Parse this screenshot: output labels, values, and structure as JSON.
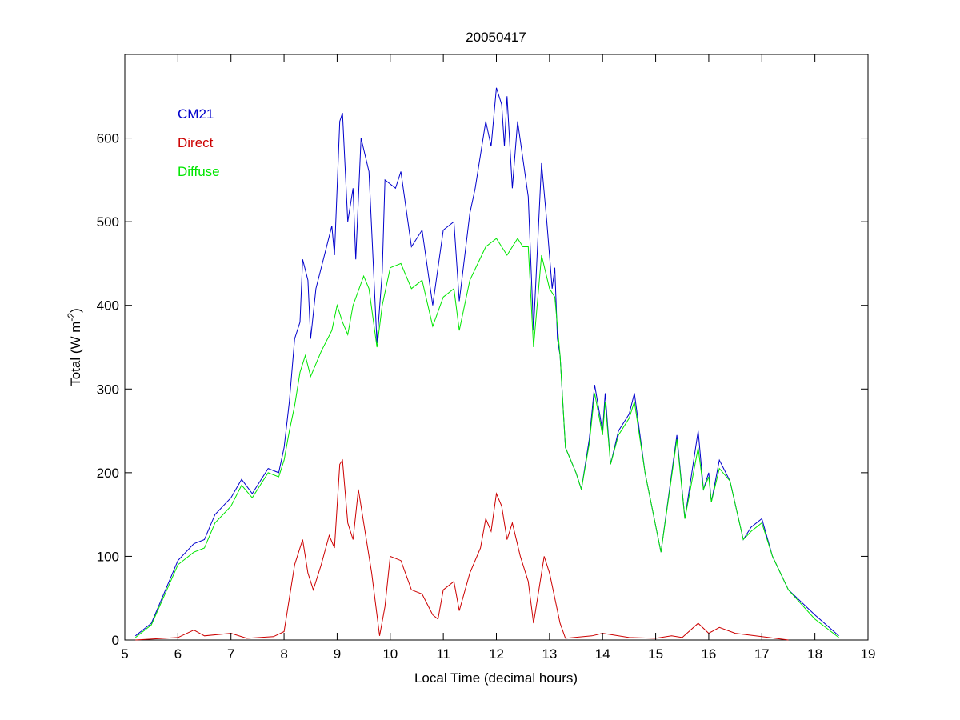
{
  "chart_data": {
    "type": "line",
    "title": "20050417",
    "xlabel": "Local Time (decimal hours)",
    "ylabel": {
      "prefix": "Total (W m",
      "sup": "-2",
      "suffix": ")"
    },
    "xlim": [
      5,
      19
    ],
    "ylim": [
      0,
      700
    ],
    "xticks": [
      5,
      6,
      7,
      8,
      9,
      10,
      11,
      12,
      13,
      14,
      15,
      16,
      17,
      18,
      19
    ],
    "yticks": [
      0,
      100,
      200,
      300,
      400,
      500,
      600
    ],
    "grid": false,
    "legend_placement": "top-left",
    "series": [
      {
        "name": "CM21",
        "color": "#0000cc",
        "x": [
          5.2,
          5.5,
          6.0,
          6.3,
          6.5,
          6.7,
          7.0,
          7.2,
          7.4,
          7.7,
          7.9,
          8.0,
          8.1,
          8.2,
          8.3,
          8.35,
          8.45,
          8.5,
          8.6,
          8.8,
          8.9,
          8.95,
          9.05,
          9.1,
          9.2,
          9.3,
          9.35,
          9.45,
          9.6,
          9.75,
          9.85,
          9.9,
          10.1,
          10.2,
          10.4,
          10.6,
          10.8,
          11.0,
          11.2,
          11.3,
          11.5,
          11.6,
          11.8,
          11.9,
          12.0,
          12.1,
          12.15,
          12.2,
          12.3,
          12.4,
          12.6,
          12.7,
          12.85,
          12.95,
          13.05,
          13.1,
          13.15,
          13.2,
          13.3,
          13.5,
          13.6,
          13.75,
          13.85,
          14.0,
          14.05,
          14.15,
          14.3,
          14.5,
          14.6,
          14.8,
          15.1,
          15.4,
          15.55,
          15.8,
          15.9,
          16.0,
          16.05,
          16.2,
          16.4,
          16.65,
          16.8,
          17.0,
          17.2,
          17.5,
          18.0,
          18.45
        ],
        "y": [
          5,
          20,
          95,
          115,
          120,
          150,
          170,
          192,
          175,
          205,
          200,
          230,
          285,
          360,
          380,
          455,
          430,
          360,
          420,
          470,
          495,
          460,
          620,
          630,
          500,
          540,
          455,
          600,
          560,
          355,
          440,
          550,
          540,
          560,
          470,
          490,
          400,
          490,
          500,
          405,
          510,
          540,
          620,
          590,
          660,
          640,
          590,
          650,
          540,
          620,
          530,
          370,
          570,
          500,
          420,
          445,
          360,
          340,
          230,
          200,
          180,
          240,
          305,
          250,
          295,
          210,
          250,
          270,
          295,
          200,
          105,
          245,
          145,
          250,
          180,
          200,
          165,
          215,
          190,
          120,
          135,
          145,
          100,
          60,
          30,
          5
        ]
      },
      {
        "name": "Direct",
        "color": "#cc0000",
        "x": [
          5.2,
          6.0,
          6.3,
          6.5,
          7.0,
          7.3,
          7.8,
          8.0,
          8.1,
          8.2,
          8.35,
          8.45,
          8.55,
          8.7,
          8.85,
          8.95,
          9.05,
          9.1,
          9.2,
          9.3,
          9.4,
          9.5,
          9.65,
          9.8,
          9.9,
          10.0,
          10.2,
          10.4,
          10.6,
          10.8,
          10.9,
          11.0,
          11.2,
          11.3,
          11.5,
          11.7,
          11.8,
          11.9,
          12.0,
          12.1,
          12.2,
          12.3,
          12.45,
          12.6,
          12.7,
          12.8,
          12.9,
          13.0,
          13.2,
          13.3,
          13.8,
          14.0,
          14.5,
          15.0,
          15.3,
          15.5,
          15.8,
          16.0,
          16.2,
          16.5,
          17.0,
          17.5
        ],
        "y": [
          0,
          3,
          12,
          5,
          8,
          2,
          4,
          10,
          50,
          90,
          120,
          80,
          60,
          90,
          125,
          110,
          210,
          215,
          140,
          120,
          180,
          140,
          80,
          5,
          40,
          100,
          95,
          60,
          55,
          30,
          25,
          60,
          70,
          35,
          80,
          110,
          145,
          130,
          175,
          160,
          120,
          140,
          100,
          70,
          20,
          60,
          100,
          80,
          20,
          2,
          5,
          8,
          3,
          2,
          5,
          3,
          20,
          8,
          15,
          8,
          4,
          0
        ]
      },
      {
        "name": "Diffuse",
        "color": "#00e600",
        "x": [
          5.2,
          5.5,
          6.0,
          6.3,
          6.5,
          6.7,
          7.0,
          7.2,
          7.4,
          7.7,
          7.9,
          8.0,
          8.1,
          8.2,
          8.3,
          8.4,
          8.5,
          8.7,
          8.9,
          9.0,
          9.1,
          9.2,
          9.3,
          9.5,
          9.6,
          9.75,
          9.85,
          10.0,
          10.2,
          10.4,
          10.6,
          10.8,
          11.0,
          11.2,
          11.3,
          11.5,
          11.8,
          12.0,
          12.2,
          12.4,
          12.5,
          12.6,
          12.7,
          12.85,
          13.0,
          13.1,
          13.2,
          13.3,
          13.5,
          13.6,
          13.75,
          13.85,
          14.0,
          14.05,
          14.15,
          14.3,
          14.5,
          14.6,
          14.8,
          15.1,
          15.4,
          15.55,
          15.8,
          15.9,
          16.0,
          16.05,
          16.2,
          16.4,
          16.65,
          16.8,
          17.0,
          17.2,
          17.5,
          18.0,
          18.45
        ],
        "y": [
          3,
          18,
          90,
          105,
          110,
          140,
          160,
          185,
          170,
          200,
          195,
          215,
          250,
          280,
          320,
          340,
          315,
          345,
          370,
          400,
          380,
          365,
          400,
          435,
          420,
          350,
          400,
          445,
          450,
          420,
          430,
          375,
          410,
          420,
          370,
          430,
          470,
          480,
          460,
          480,
          470,
          470,
          350,
          460,
          420,
          410,
          340,
          230,
          200,
          180,
          235,
          295,
          245,
          285,
          210,
          245,
          265,
          285,
          200,
          105,
          240,
          145,
          230,
          180,
          195,
          165,
          205,
          190,
          120,
          130,
          140,
          100,
          60,
          25,
          3
        ]
      }
    ]
  }
}
